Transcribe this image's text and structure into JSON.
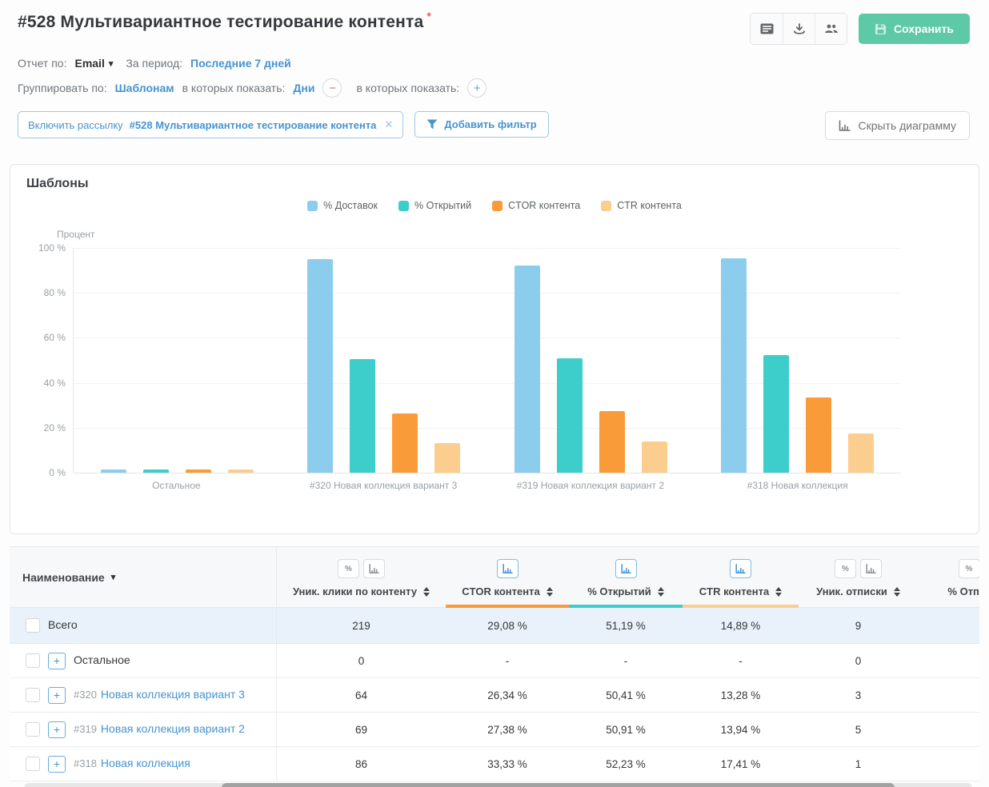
{
  "page": {
    "title": "#528 Мультивариантное тестирование контента",
    "required_mark": "*"
  },
  "toolbar": {
    "save_label": "Сохранить"
  },
  "controls": {
    "report_by_label": "Отчет по:",
    "report_by_value": "Email",
    "period_label": "За период:",
    "period_value": "Последние 7 дней",
    "group_by_label": "Группировать по:",
    "group_by_value": "Шаблонам",
    "show_in_label": "в которых показать:",
    "show_in_value": "Дни",
    "show_in_label2": "в которых показать:"
  },
  "filters": {
    "chip_prefix": "Включить рассылку",
    "chip_value": "#528 Мультивариантное тестирование контента",
    "chip_close": "✕",
    "add_filter_label": "Добавить фильтр",
    "hide_chart_label": "Скрыть диаграмму"
  },
  "chart_data": {
    "type": "bar",
    "title": "Шаблоны",
    "ylabel": "Процент",
    "categories": [
      "Остальное",
      "#320 Новая коллекция вариант 3",
      "#319 Новая коллекция вариант 2",
      "#318 Новая коллекция"
    ],
    "series": [
      {
        "name": "% Доставок",
        "color": "#8ccdee",
        "values": [
          1.5,
          95.0,
          92.0,
          95.5
        ]
      },
      {
        "name": "% Открытий",
        "color": "#3dcdca",
        "values": [
          1.5,
          50.41,
          50.91,
          52.23
        ]
      },
      {
        "name": "CTOR контента",
        "color": "#f99b38",
        "values": [
          1.5,
          26.34,
          27.38,
          33.33
        ]
      },
      {
        "name": "CTR контента",
        "color": "#fbce90",
        "values": [
          1.5,
          13.28,
          13.94,
          17.41
        ]
      }
    ],
    "ylim": [
      0,
      100
    ],
    "yticks": [
      0,
      20,
      40,
      60,
      80,
      100
    ],
    "ytick_suffix": " %",
    "grid": true,
    "legend_position": "top"
  },
  "table": {
    "columns": [
      {
        "label": "Наименование",
        "type": "name"
      },
      {
        "label": "Уник. клики по контенту",
        "icons": [
          "percent",
          "chart"
        ],
        "active": false,
        "underline": ""
      },
      {
        "label": "CTOR контента",
        "icons": [
          "chart"
        ],
        "active": true,
        "underline": "#f99b38"
      },
      {
        "label": "% Открытий",
        "icons": [
          "chart"
        ],
        "active": true,
        "underline": "#3dcdca"
      },
      {
        "label": "CTR контента",
        "icons": [
          "chart"
        ],
        "active": true,
        "underline": "#fbce90"
      },
      {
        "label": "Уник. отписки",
        "icons": [
          "percent",
          "chart"
        ],
        "active": false,
        "underline": ""
      },
      {
        "label": "% Отписок",
        "icons": [
          "percent",
          "chart"
        ],
        "active": false,
        "underline": ""
      }
    ],
    "rows": [
      {
        "prefix": "",
        "name": "Всего",
        "link": false,
        "total": true,
        "expandable": false,
        "values": [
          "219",
          "29,08 %",
          "51,19 %",
          "14,89 %",
          "9",
          ""
        ]
      },
      {
        "prefix": "",
        "name": "Остальное",
        "link": false,
        "total": false,
        "expandable": true,
        "values": [
          "0",
          "-",
          "-",
          "-",
          "0",
          ""
        ]
      },
      {
        "prefix": "#320",
        "name": "Новая коллекция вариант 3",
        "link": true,
        "total": false,
        "expandable": true,
        "values": [
          "64",
          "26,34 %",
          "50,41 %",
          "13,28 %",
          "3",
          ""
        ]
      },
      {
        "prefix": "#319",
        "name": "Новая коллекция вариант 2",
        "link": true,
        "total": false,
        "expandable": true,
        "values": [
          "69",
          "27,38 %",
          "50,91 %",
          "13,94 %",
          "5",
          ""
        ]
      },
      {
        "prefix": "#318",
        "name": "Новая коллекция",
        "link": true,
        "total": false,
        "expandable": true,
        "values": [
          "86",
          "33,33 %",
          "52,23 %",
          "17,41 %",
          "1",
          ""
        ]
      }
    ]
  },
  "colors": {
    "accent_blue": "#4694d1",
    "save_green": "#5ec9a6",
    "minus_red": "#e2646c",
    "series_delivered": "#8ccdee",
    "series_opens": "#3dcdca",
    "series_ctor": "#f99b38",
    "series_ctr": "#fbce90",
    "total_row_bg": "#e9f2fa"
  }
}
